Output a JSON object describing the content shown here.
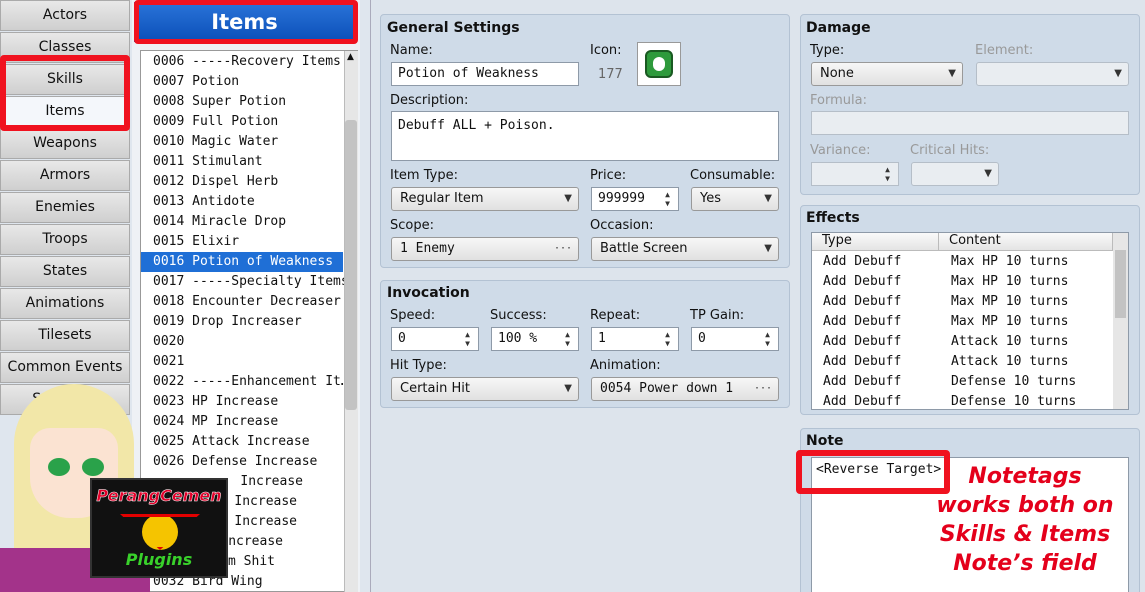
{
  "tabs": [
    "Actors",
    "Classes",
    "Skills",
    "Items",
    "Weapons",
    "Armors",
    "Enemies",
    "Troops",
    "States",
    "Animations",
    "Tilesets",
    "Common Events",
    "System 1"
  ],
  "list": {
    "title": "Items",
    "rows": [
      {
        "id": "0006",
        "name": "-----Recovery Items"
      },
      {
        "id": "0007",
        "name": "Potion"
      },
      {
        "id": "0008",
        "name": "Super Potion"
      },
      {
        "id": "0009",
        "name": "Full Potion"
      },
      {
        "id": "0010",
        "name": "Magic Water"
      },
      {
        "id": "0011",
        "name": "Stimulant"
      },
      {
        "id": "0012",
        "name": "Dispel Herb"
      },
      {
        "id": "0013",
        "name": "Antidote"
      },
      {
        "id": "0014",
        "name": "Miracle Drop"
      },
      {
        "id": "0015",
        "name": "Elixir"
      },
      {
        "id": "0016",
        "name": "Potion of Weakness"
      },
      {
        "id": "0017",
        "name": "-----Specialty Items"
      },
      {
        "id": "0018",
        "name": "Encounter Decreaser"
      },
      {
        "id": "0019",
        "name": "Drop Increaser"
      },
      {
        "id": "0020"
      },
      {
        "id": "0021"
      },
      {
        "id": "0022",
        "name": "-----Enhancement It…"
      },
      {
        "id": "0023",
        "name": "HP Increase"
      },
      {
        "id": "0024",
        "name": "MP Increase"
      },
      {
        "id": "0025",
        "name": "Attack Increase"
      },
      {
        "id": "0026",
        "name": "Defense Increase"
      },
      {
        "name": "Increase"
      },
      {
        "name": "tance Increase"
      },
      {
        "name": "ty Increase"
      },
      {
        "name": "ncrease"
      },
      {
        "name": "andom Shit"
      },
      {
        "id": "0032",
        "name": "Bird Wing"
      }
    ]
  },
  "general": {
    "title": "General Settings",
    "name_label": "Name:",
    "name": "Potion of Weakness",
    "icon_label": "Icon:",
    "icon": "177",
    "description_label": "Description:",
    "description": "Debuff ALL + Poison.",
    "item_type_label": "Item Type:",
    "item_type": "Regular Item",
    "price_label": "Price:",
    "price": "999999",
    "consumable_label": "Consumable:",
    "consumable": "Yes",
    "scope_label": "Scope:",
    "scope": "1 Enemy",
    "occasion_label": "Occasion:",
    "occasion": "Battle Screen"
  },
  "invocation": {
    "title": "Invocation",
    "speed_label": "Speed:",
    "speed": "0",
    "success_label": "Success:",
    "success": "100 %",
    "repeat_label": "Repeat:",
    "repeat": "1",
    "tp_gain_label": "TP Gain:",
    "tp_gain": "0",
    "hit_type_label": "Hit Type:",
    "hit_type": "Certain Hit",
    "animation_label": "Animation:",
    "animation": "0054 Power down 1"
  },
  "damage": {
    "title": "Damage",
    "type_label": "Type:",
    "type": "None",
    "element_label": "Element:",
    "formula_label": "Formula:",
    "variance_label": "Variance:",
    "critical_label": "Critical Hits:"
  },
  "effects": {
    "title": "Effects",
    "headers": [
      "Type",
      "Content"
    ],
    "rows": [
      [
        "Add Debuff",
        "Max HP 10 turns"
      ],
      [
        "Add Debuff",
        "Max HP 10 turns"
      ],
      [
        "Add Debuff",
        "Max MP 10 turns"
      ],
      [
        "Add Debuff",
        "Max MP 10 turns"
      ],
      [
        "Add Debuff",
        "Attack 10 turns"
      ],
      [
        "Add Debuff",
        "Attack 10 turns"
      ],
      [
        "Add Debuff",
        "Defense 10 turns"
      ],
      [
        "Add Debuff",
        "Defense 10 turns"
      ]
    ]
  },
  "note": {
    "title": "Note",
    "text": "<Reverse Target>"
  },
  "annotation": [
    "Notetags",
    "works both on",
    "Skills & Items",
    "Note’s field"
  ],
  "logo": {
    "top": "PerangCemen",
    "bottom": "Plugins"
  }
}
